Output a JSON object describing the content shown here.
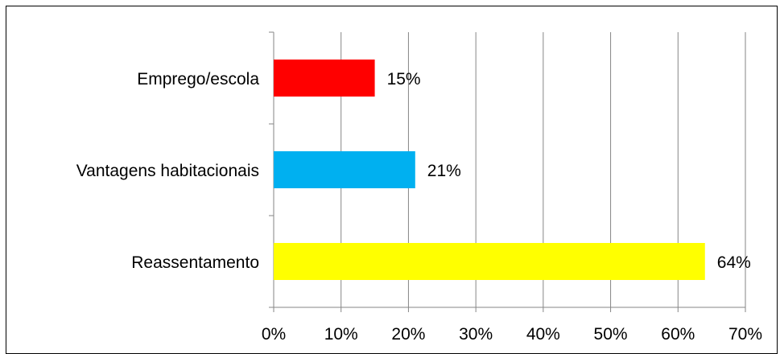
{
  "chart_data": {
    "type": "bar",
    "orientation": "horizontal",
    "categories": [
      "Reassentamento",
      "Vantagens habitacionais",
      "Emprego/escola"
    ],
    "values": [
      0.64,
      0.21,
      0.15
    ],
    "data_labels": [
      "64%",
      "21%",
      "15%"
    ],
    "bar_colors": [
      "#ffff00",
      "#00b0f0",
      "#ff0000"
    ],
    "xlim": [
      0,
      0.7
    ],
    "x_ticks": [
      0,
      0.1,
      0.2,
      0.3,
      0.4,
      0.5,
      0.6,
      0.7
    ],
    "x_tick_labels": [
      "0%",
      "10%",
      "20%",
      "30%",
      "40%",
      "50%",
      "60%",
      "70%"
    ],
    "grid": "vertical",
    "legend": "none",
    "title": "",
    "xlabel": "",
    "ylabel": ""
  }
}
